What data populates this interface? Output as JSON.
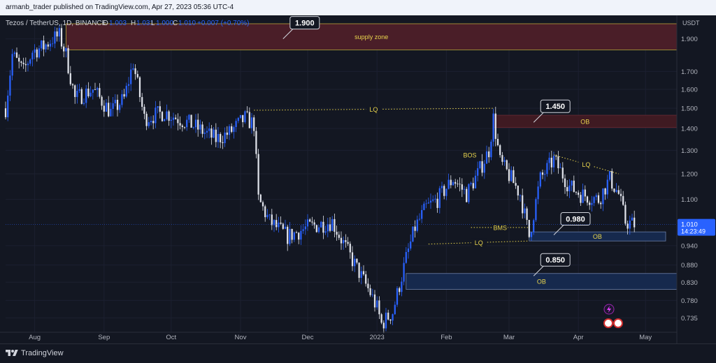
{
  "publisher_line": "armanb_trader published on TradingView.com, Apr 27, 2023 05:36 UTC-4",
  "legend": {
    "symbol": "Tezos / TetherUS, 1D, BINANCE",
    "o_label": "O",
    "o_value": "1.003",
    "h_label": "H",
    "h_value": "1.031",
    "l_label": "L",
    "l_value": "1.000",
    "c_label": "C",
    "c_value": "1.010",
    "change": "+0.007 (+0.70%)"
  },
  "footer": {
    "brand": "TradingView"
  },
  "colors": {
    "up": "#2962ff",
    "down": "#e0e3eb",
    "supply_fill": "#4a1e28",
    "supply_border": "#b8a23a",
    "ob_red": "#3f1a22",
    "ob_blue": "#16294d",
    "ob_blue_border": "#6b7fa8",
    "dotted_line": "#e8d44d",
    "price_tag": "#2962ff"
  },
  "chart_data": {
    "type": "candlestick",
    "title": "Tezos / TetherUS, 1D, BINANCE",
    "y_axis_label": "USDT",
    "y_scale": "log",
    "y_range": [
      0.71,
      2.0
    ],
    "y_ticks": [
      "1.900",
      "1.700",
      "1.600",
      "1.500",
      "1.400",
      "1.300",
      "1.200",
      "1.100",
      "0.940",
      "0.880",
      "0.830",
      "0.780",
      "0.735"
    ],
    "x_ticks": [
      "Aug",
      "Sep",
      "Oct",
      "Nov",
      "Dec",
      "2023",
      "Feb",
      "Mar",
      "Apr",
      "May"
    ],
    "x_range": [
      "2022-07-19",
      "2023-05-15"
    ],
    "last_price": "1.010",
    "countdown": "14:23:49",
    "close_path": [
      [
        "2022-07-19",
        1.5
      ],
      [
        "2022-07-22",
        1.8
      ],
      [
        "2022-07-27",
        1.7
      ],
      [
        "2022-07-31",
        1.82
      ],
      [
        "2022-08-05",
        1.85
      ],
      [
        "2022-08-09",
        1.9
      ],
      [
        "2022-08-12",
        1.92
      ],
      [
        "2022-08-15",
        1.8
      ],
      [
        "2022-08-19",
        1.55
      ],
      [
        "2022-08-27",
        1.6
      ],
      [
        "2022-09-04",
        1.48
      ],
      [
        "2022-09-10",
        1.55
      ],
      [
        "2022-09-14",
        1.75
      ],
      [
        "2022-09-19",
        1.45
      ],
      [
        "2022-09-28",
        1.48
      ],
      [
        "2022-10-10",
        1.42
      ],
      [
        "2022-10-21",
        1.35
      ],
      [
        "2022-10-27",
        1.38
      ],
      [
        "2022-11-03",
        1.45
      ],
      [
        "2022-11-07",
        1.42
      ],
      [
        "2022-11-09",
        1.1
      ],
      [
        "2022-11-14",
        1.02
      ],
      [
        "2022-11-22",
        0.97
      ],
      [
        "2022-12-01",
        1.0
      ],
      [
        "2022-12-12",
        1.02
      ],
      [
        "2022-12-19",
        0.92
      ],
      [
        "2022-12-29",
        0.8
      ],
      [
        "2023-01-01",
        0.76
      ],
      [
        "2023-01-03",
        0.72
      ],
      [
        "2023-01-08",
        0.75
      ],
      [
        "2023-01-14",
        0.9
      ],
      [
        "2023-01-18",
        1.0
      ],
      [
        "2023-01-23",
        1.07
      ],
      [
        "2023-01-28",
        1.1
      ],
      [
        "2023-02-04",
        1.18
      ],
      [
        "2023-02-10",
        1.12
      ],
      [
        "2023-02-15",
        1.2
      ],
      [
        "2023-02-20",
        1.3
      ],
      [
        "2023-02-22",
        1.45
      ],
      [
        "2023-02-25",
        1.25
      ],
      [
        "2023-03-02",
        1.18
      ],
      [
        "2023-03-06",
        1.12
      ],
      [
        "2023-03-10",
        0.97
      ],
      [
        "2023-03-15",
        1.18
      ],
      [
        "2023-03-21",
        1.26
      ],
      [
        "2023-03-28",
        1.15
      ],
      [
        "2023-04-02",
        1.12
      ],
      [
        "2023-04-10",
        1.1
      ],
      [
        "2023-04-15",
        1.18
      ],
      [
        "2023-04-19",
        1.12
      ],
      [
        "2023-04-22",
        1.02
      ],
      [
        "2023-04-26",
        1.01
      ]
    ],
    "annotations": {
      "zones": [
        {
          "label": "supply zone",
          "kind": "supply",
          "y_top": 2.0,
          "y_bottom": 1.83,
          "x_start": "2022-08-15",
          "x_end": "2023-05-15"
        },
        {
          "label": "OB",
          "kind": "ob-red",
          "y_top": 1.465,
          "y_bottom": 1.405,
          "x_start": "2023-02-22",
          "x_end": "2023-05-15"
        },
        {
          "label": "OB",
          "kind": "ob-blue",
          "y_top": 0.985,
          "y_bottom": 0.955,
          "x_start": "2023-03-10",
          "x_end": "2023-05-10"
        },
        {
          "label": "OB",
          "kind": "ob-blue",
          "y_top": 0.855,
          "y_bottom": 0.81,
          "x_start": "2023-01-14",
          "x_end": "2023-05-15"
        }
      ],
      "lines": [
        {
          "label": "LQ",
          "from": [
            "2022-11-07",
            1.49
          ],
          "to": [
            "2023-02-22",
            1.5
          ]
        },
        {
          "label": "LQ",
          "from": [
            "2023-01-24",
            0.945
          ],
          "to": [
            "2023-03-10",
            0.955
          ]
        },
        {
          "label": "LQ",
          "from": [
            "2023-03-21",
            1.28
          ],
          "to": [
            "2023-04-19",
            1.2
          ]
        },
        {
          "label": "BOS",
          "from": [
            "2023-02-08",
            1.28
          ],
          "to": [
            "2023-02-15",
            1.28
          ]
        },
        {
          "label": "BMS",
          "from": [
            "2023-02-12",
            1.0
          ],
          "to": [
            "2023-03-10",
            1.0
          ]
        }
      ],
      "callouts": [
        {
          "label": "1.900",
          "at": [
            "2022-11-20",
            1.9
          ]
        },
        {
          "label": "1.450",
          "at": [
            "2023-03-12",
            1.43
          ]
        },
        {
          "label": "0.980",
          "at": [
            "2023-03-21",
            0.975
          ]
        },
        {
          "label": "0.850",
          "at": [
            "2023-03-12",
            0.848
          ]
        }
      ]
    }
  }
}
